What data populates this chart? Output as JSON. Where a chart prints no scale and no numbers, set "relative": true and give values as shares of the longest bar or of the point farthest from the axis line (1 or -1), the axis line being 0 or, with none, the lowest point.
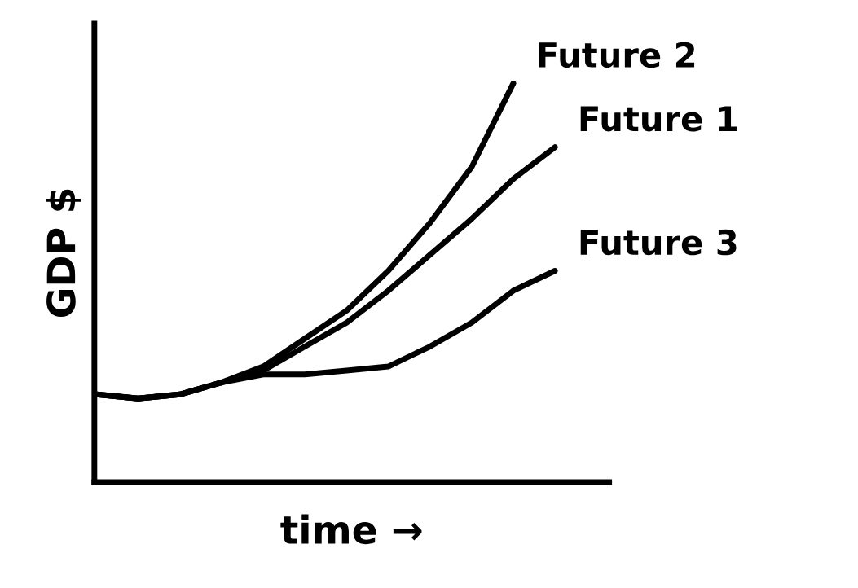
{
  "chart_data": {
    "type": "line",
    "relative": true,
    "xlabel": "time →",
    "ylabel": "GDP $",
    "categories": [
      null,
      null,
      null,
      null,
      null,
      null,
      null,
      null,
      null,
      null,
      null,
      null,
      null
    ],
    "series": [
      {
        "name": "Future 2",
        "color": "#000000",
        "values": [
          0.22,
          0.21,
          0.22,
          0.25,
          0.29,
          0.36,
          0.43,
          0.53,
          0.65,
          0.79,
          1.0,
          null,
          null
        ]
      },
      {
        "name": "Future 1",
        "color": "#000000",
        "values": [
          0.22,
          0.21,
          0.22,
          0.25,
          0.28,
          0.34,
          0.4,
          0.48,
          0.57,
          0.66,
          0.76,
          0.84,
          null
        ]
      },
      {
        "name": "Future 3",
        "color": "#000000",
        "values": [
          0.22,
          0.21,
          0.22,
          0.25,
          0.27,
          0.27,
          0.28,
          0.29,
          0.34,
          0.4,
          0.48,
          0.53,
          null
        ]
      }
    ],
    "legend": false,
    "grid": false,
    "marker": "none",
    "line_style": "solid"
  }
}
